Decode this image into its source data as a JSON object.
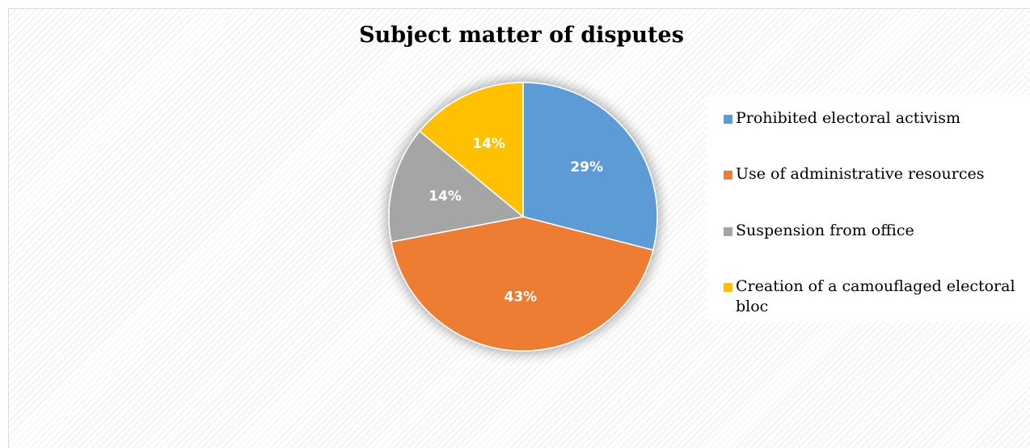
{
  "chart_data": {
    "type": "pie",
    "title": "Subject matter of disputes",
    "categories": [
      "Prohibited electoral activism",
      "Use of administrative resources",
      "Suspension from office",
      "Creation of a camouflaged electoral bloc"
    ],
    "values": [
      29,
      43,
      14,
      14
    ],
    "labels": [
      "29%",
      "43%",
      "14%",
      "14%"
    ],
    "colors": [
      "#5b9bd5",
      "#ed7d31",
      "#a5a5a5",
      "#ffc000"
    ],
    "legend_position": "right"
  }
}
